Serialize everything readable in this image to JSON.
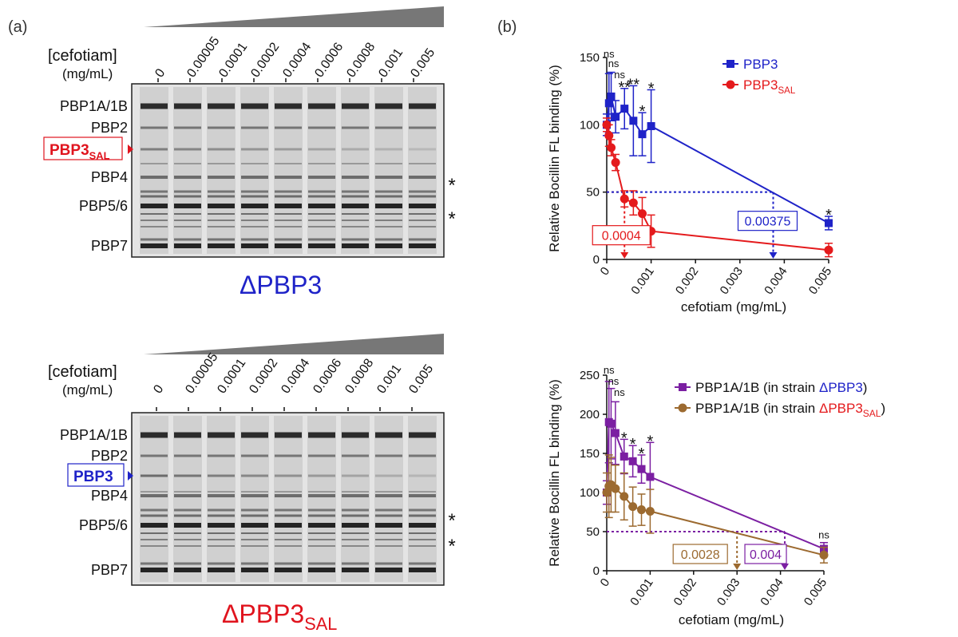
{
  "panel_labels": {
    "a": "(a)",
    "b": "(b)"
  },
  "gels": [
    {
      "conc_title": "[cefotiam]",
      "conc_unit": "(mg/mL)",
      "lanes": [
        "0",
        "0.00005",
        "0.0001",
        "0.0002",
        "0.0004",
        "0.0006",
        "0.0008",
        "0.001",
        "0.005"
      ],
      "band_labels": [
        "PBP1A/1B",
        "PBP2",
        "PBP4",
        "PBP5/6",
        "PBP7"
      ],
      "highlight": {
        "main": "PBP3",
        "sub": "SAL",
        "color": "#e0141e"
      },
      "asterisks": [
        "*",
        "*"
      ],
      "strain": {
        "main": "ΔPBP3",
        "sub": "",
        "color": "#1f23c8"
      }
    },
    {
      "conc_title": "[cefotiam]",
      "conc_unit": "(mg/mL)",
      "lanes": [
        "0",
        "0.00005",
        "0.0001",
        "0.0002",
        "0.0004",
        "0.0006",
        "0.0008",
        "0.001",
        "0.005"
      ],
      "band_labels": [
        "PBP1A/1B",
        "PBP2",
        "PBP4",
        "PBP5/6",
        "PBP7"
      ],
      "highlight": {
        "main": "PBP3",
        "sub": "",
        "color": "#1f23c8"
      },
      "asterisks": [
        "*",
        "*"
      ],
      "strain": {
        "main": "ΔPBP3",
        "sub": "SAL",
        "color": "#e0141e"
      }
    }
  ],
  "chart_data": [
    {
      "type": "line",
      "ylabel": "Relative Bocillin FL binding (%)",
      "xlabel": "cefotiam (mg/mL)",
      "xlim": [
        0,
        0.005
      ],
      "ylim": [
        0,
        150
      ],
      "xticks": [
        "0",
        "0.001",
        "0.002",
        "0.003",
        "0.004",
        "0.005"
      ],
      "yticks": [
        "0",
        "50",
        "100",
        "150"
      ],
      "series": [
        {
          "name": "PBP3",
          "color": "#1f23c8",
          "marker": "square",
          "x": [
            0,
            5e-05,
            0.0001,
            0.0002,
            0.0004,
            0.0006,
            0.0008,
            0.001,
            0.005
          ],
          "y": [
            100,
            116,
            121,
            106,
            112,
            103,
            93,
            99,
            27
          ],
          "err": [
            8,
            22,
            18,
            12,
            15,
            26,
            16,
            27,
            5
          ]
        },
        {
          "name": "PBP3",
          "name_sub": "SAL",
          "color": "#e41a1c",
          "marker": "circle",
          "x": [
            0,
            5e-05,
            0.0001,
            0.0002,
            0.0004,
            0.0006,
            0.0008,
            0.001,
            0.005
          ],
          "y": [
            100,
            92,
            83,
            72,
            45,
            42,
            34,
            21,
            7
          ],
          "err": [
            5,
            8,
            6,
            6,
            6,
            9,
            12,
            12,
            5
          ]
        }
      ],
      "significance": [
        {
          "x": 5e-05,
          "label": "ns"
        },
        {
          "x": 0.0001,
          "label": "ns"
        },
        {
          "x": 0.0002,
          "label": "ns"
        },
        {
          "x": 0.0004,
          "label": "**"
        },
        {
          "x": 0.0006,
          "label": "**"
        },
        {
          "x": 0.0008,
          "label": "*"
        },
        {
          "x": 0.001,
          "label": "*"
        },
        {
          "x": 0.005,
          "label": "*"
        }
      ],
      "ic50": [
        {
          "value": "0.0004",
          "x": 0.0004,
          "color": "#e41a1c"
        },
        {
          "value": "0.00375",
          "x": 0.00375,
          "color": "#1f23c8"
        }
      ],
      "threshold": 50
    },
    {
      "type": "line",
      "ylabel": "Relative Bocillin FL binding (%)",
      "xlabel": "cefotiam (mg/mL)",
      "xlim": [
        0,
        0.005
      ],
      "ylim": [
        0,
        250
      ],
      "xticks": [
        "0",
        "0.001",
        "0.002",
        "0.003",
        "0.004",
        "0.005"
      ],
      "yticks": [
        "0",
        "50",
        "100",
        "150",
        "200",
        "250"
      ],
      "series": [
        {
          "name": "PBP1A/1B (in strain ",
          "name_strain": "ΔPBP3",
          "name_sub": "",
          "name_end": ")",
          "strain_color": "#1f23c8",
          "color": "#7b1fa2",
          "marker": "square",
          "x": [
            0,
            5e-05,
            0.0001,
            0.0002,
            0.0004,
            0.0006,
            0.0008,
            0.001,
            0.005
          ],
          "y": [
            100,
            190,
            188,
            176,
            146,
            140,
            130,
            120,
            28
          ],
          "err": [
            15,
            52,
            45,
            40,
            22,
            20,
            18,
            44,
            8
          ]
        },
        {
          "name": "PBP1A/1B (in strain ",
          "name_strain": "ΔPBP3",
          "name_sub": "SAL",
          "name_end": ")",
          "strain_color": "#e41a1c",
          "color": "#9c6a30",
          "marker": "circle",
          "x": [
            0,
            5e-05,
            0.0001,
            0.0002,
            0.0004,
            0.0006,
            0.0008,
            0.001,
            0.005
          ],
          "y": [
            100,
            108,
            110,
            105,
            95,
            82,
            78,
            76,
            20
          ],
          "err": [
            25,
            40,
            35,
            30,
            30,
            25,
            20,
            28,
            10
          ]
        }
      ],
      "significance": [
        {
          "x": 5e-05,
          "label": "ns"
        },
        {
          "x": 0.0001,
          "label": "ns"
        },
        {
          "x": 0.0002,
          "label": "ns"
        },
        {
          "x": 0.0004,
          "label": "*"
        },
        {
          "x": 0.0006,
          "label": "*"
        },
        {
          "x": 0.0008,
          "label": "*"
        },
        {
          "x": 0.001,
          "label": "*"
        },
        {
          "x": 0.005,
          "label": "ns"
        }
      ],
      "ic50": [
        {
          "value": "0.0028",
          "x": 0.003,
          "color": "#9c6a30"
        },
        {
          "value": "0.004",
          "x": 0.0041,
          "color": "#7b1fa2"
        }
      ],
      "threshold": 50
    }
  ]
}
